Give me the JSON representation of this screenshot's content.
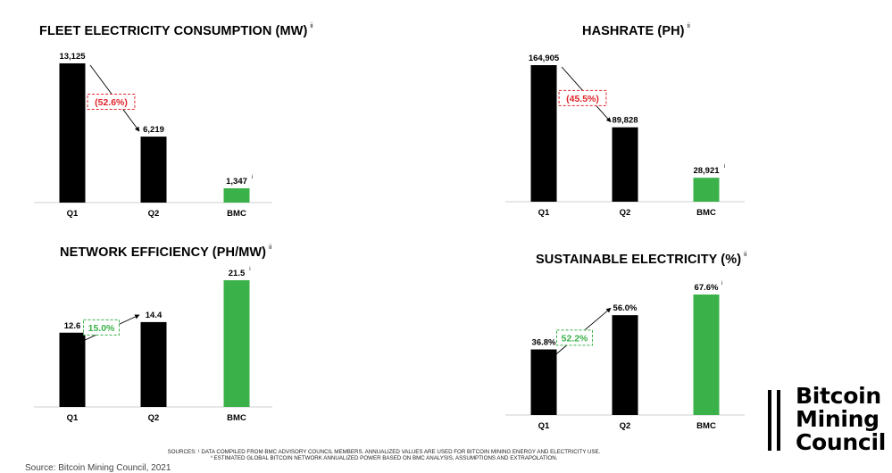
{
  "colors": {
    "q_bar": "#000000",
    "bmc_bar": "#3bb14a",
    "decrease": "#e0242a",
    "increase": "#3bb14a"
  },
  "chart_data": [
    {
      "type": "bar",
      "title": "FLEET ELECTRICITY CONSUMPTION (MW)",
      "title_note": "ii",
      "categories": [
        "Q1",
        "Q2",
        "BMC"
      ],
      "values": [
        13125,
        6219,
        1347
      ],
      "labels": [
        "13,125",
        "6,219",
        "1,347"
      ],
      "label_notes": [
        "",
        "",
        "i"
      ],
      "change_label": "(52.6%)",
      "change_direction": "decrease",
      "ylim": [
        0,
        13125
      ]
    },
    {
      "type": "bar",
      "title": "HASHRATE (PH)",
      "title_note": "ii",
      "categories": [
        "Q1",
        "Q2",
        "BMC"
      ],
      "values": [
        164905,
        89828,
        28921
      ],
      "labels": [
        "164,905",
        "89,828",
        "28,921"
      ],
      "label_notes": [
        "",
        "",
        "i"
      ],
      "change_label": "(45.5%)",
      "change_direction": "decrease",
      "ylim": [
        0,
        164905
      ]
    },
    {
      "type": "bar",
      "title": "NETWORK EFFICIENCY (PH/MW)",
      "title_note": "ii",
      "categories": [
        "Q1",
        "Q2",
        "BMC"
      ],
      "values": [
        12.6,
        14.4,
        21.5
      ],
      "labels": [
        "12.6",
        "14.4",
        "21.5"
      ],
      "label_notes": [
        "",
        "",
        "i"
      ],
      "change_label": "15.0%",
      "change_direction": "increase",
      "ylim": [
        0,
        21.5
      ]
    },
    {
      "type": "bar",
      "title": "SUSTAINABLE ELECTRICITY (%)",
      "title_note": "ii",
      "categories": [
        "Q1",
        "Q2",
        "BMC"
      ],
      "values": [
        36.8,
        56.0,
        67.6
      ],
      "labels": [
        "36.8%",
        "56.0%",
        "67.6%"
      ],
      "label_notes": [
        "",
        "",
        "i"
      ],
      "change_label": "52.2%",
      "change_direction": "increase",
      "ylim": [
        0,
        67.6
      ]
    }
  ],
  "footer": {
    "sources_line1": "SOURCES: ¹ DATA COMPILED FROM BMC ADVISORY COUNCIL MEMBERS. ANNUALIZED VALUES ARE USED FOR BITCOIN MINING ENERGY AND ELECTRICITY USE.",
    "sources_line2": "ⁱⁱ ESTIMATED GLOBAL BITCOIN NETWORK ANNUALIZED POWER BASED ON BMC ANALYSIS, ASSUMPTIONS AND EXTRAPOLATION.",
    "cutoff_text": "Source: Bitcoin Mining Council, 2021"
  },
  "logo": {
    "line1": "Bitcoin",
    "line2": "Mining",
    "line3": "Council"
  }
}
